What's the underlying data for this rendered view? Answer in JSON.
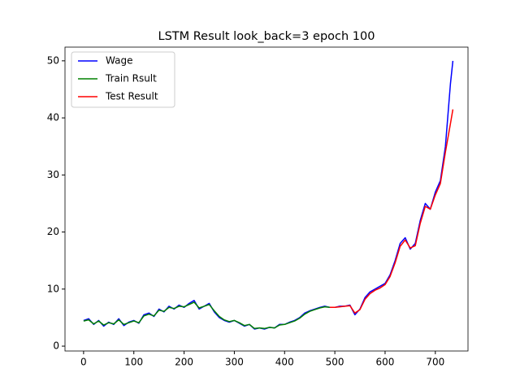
{
  "chart_data": {
    "type": "line",
    "title": "LSTM Result look_back=3 epoch 100",
    "x": [
      0,
      10,
      20,
      30,
      40,
      50,
      60,
      70,
      80,
      90,
      100,
      110,
      120,
      130,
      140,
      150,
      160,
      170,
      180,
      190,
      200,
      210,
      220,
      230,
      240,
      250,
      260,
      270,
      280,
      290,
      300,
      310,
      320,
      330,
      340,
      350,
      360,
      370,
      380,
      390,
      400,
      410,
      420,
      430,
      440,
      450,
      460,
      470,
      480,
      490,
      500,
      510,
      520,
      530,
      540,
      550,
      560,
      570,
      580,
      590,
      600,
      610,
      620,
      630,
      640,
      650,
      660,
      670,
      680,
      690,
      700,
      710,
      720,
      730,
      735
    ],
    "series": [
      {
        "name": "Wage",
        "color": "#0000ff",
        "values": [
          4.5,
          4.8,
          3.8,
          4.5,
          3.5,
          4.2,
          3.8,
          4.8,
          3.6,
          4.2,
          4.5,
          4.0,
          5.5,
          5.8,
          5.2,
          6.5,
          6.0,
          7.0,
          6.5,
          7.2,
          6.8,
          7.5,
          8.0,
          6.5,
          7.0,
          7.5,
          6.0,
          5.0,
          4.5,
          4.2,
          4.5,
          4.0,
          3.5,
          3.8,
          3.0,
          3.2,
          3.0,
          3.3,
          3.2,
          3.8,
          3.8,
          4.2,
          4.5,
          5.0,
          5.8,
          6.2,
          6.5,
          6.8,
          7.0,
          6.8,
          6.8,
          7.0,
          7.0,
          7.2,
          5.5,
          6.5,
          8.5,
          9.5,
          10.0,
          10.5,
          11.0,
          12.5,
          15.0,
          18.0,
          19.0,
          17.0,
          18.0,
          22.0,
          25.0,
          24.0,
          27.0,
          29.0,
          35.0,
          46.0,
          50.0
        ]
      },
      {
        "name": "Train Rsult",
        "color": "#008000",
        "values": [
          4.4,
          4.6,
          3.9,
          4.4,
          3.7,
          4.1,
          3.9,
          4.6,
          3.8,
          4.1,
          4.4,
          4.1,
          5.3,
          5.6,
          5.3,
          6.3,
          6.1,
          6.8,
          6.6,
          7.0,
          6.9,
          7.3,
          7.7,
          6.7,
          7.0,
          7.3,
          6.2,
          5.2,
          4.6,
          4.3,
          4.5,
          4.1,
          3.6,
          3.8,
          3.1,
          3.2,
          3.1,
          3.3,
          3.2,
          3.7,
          3.8,
          4.1,
          4.4,
          4.9,
          5.6,
          6.1,
          6.4,
          6.7,
          6.9,
          6.8,
          null,
          null,
          null,
          null,
          null,
          null,
          null,
          null,
          null,
          null,
          null,
          null,
          null,
          null,
          null,
          null,
          null,
          null,
          null,
          null,
          null,
          null,
          null,
          null,
          null
        ]
      },
      {
        "name": "Test Result",
        "color": "#ff0000",
        "values": [
          null,
          null,
          null,
          null,
          null,
          null,
          null,
          null,
          null,
          null,
          null,
          null,
          null,
          null,
          null,
          null,
          null,
          null,
          null,
          null,
          null,
          null,
          null,
          null,
          null,
          null,
          null,
          null,
          null,
          null,
          null,
          null,
          null,
          null,
          null,
          null,
          null,
          null,
          null,
          null,
          null,
          null,
          null,
          null,
          null,
          null,
          null,
          null,
          null,
          6.8,
          6.8,
          6.9,
          7.0,
          7.1,
          5.8,
          6.4,
          8.2,
          9.2,
          9.8,
          10.2,
          10.8,
          12.2,
          14.6,
          17.5,
          18.6,
          17.2,
          17.6,
          21.5,
          24.5,
          24.0,
          26.5,
          28.5,
          34.0,
          39.0,
          41.5
        ]
      }
    ],
    "xlim": [
      -37,
      765
    ],
    "ylim": [
      -0.85,
      52.4
    ],
    "xticks": [
      0,
      100,
      200,
      300,
      400,
      500,
      600,
      700
    ],
    "yticks": [
      0,
      10,
      20,
      30,
      40,
      50
    ],
    "legend": "upper left"
  }
}
